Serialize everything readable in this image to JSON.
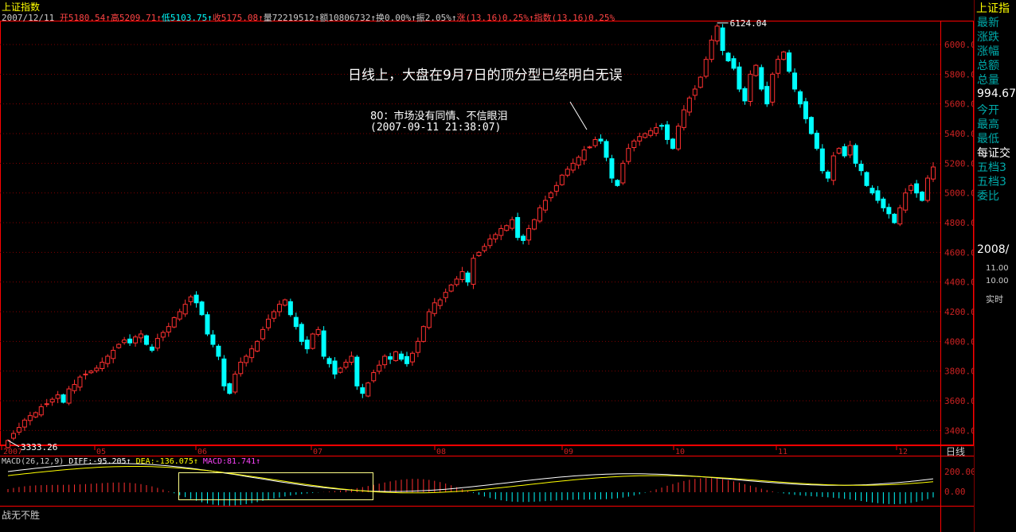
{
  "header": {
    "title": "上证指数",
    "date": "2007/12/11",
    "fields": [
      {
        "label": "开",
        "value": "5180.54",
        "color": "#ff4444"
      },
      {
        "label": "高",
        "value": "5209.71",
        "color": "#ff4444"
      },
      {
        "label": "低",
        "value": "5103.75",
        "color": "#00ffff"
      },
      {
        "label": "收",
        "value": "5175.08",
        "color": "#ff4444"
      },
      {
        "label": "量",
        "value": "72219512",
        "color": "#cccccc"
      },
      {
        "label": "额",
        "value": "10806732",
        "color": "#cccccc"
      },
      {
        "label": "换",
        "value": "0.00%",
        "color": "#cccccc"
      },
      {
        "label": "振",
        "value": "2.05%",
        "color": "#cccccc"
      },
      {
        "label": "涨",
        "value": "(13.16)0.25%",
        "color": "#ff4444"
      },
      {
        "label": "指数",
        "value": "(13.16)0.25%",
        "color": "#ff4444"
      }
    ]
  },
  "annotations": {
    "main_text": "日线上，大盘在9月7日的顶分型已经明白无误",
    "comment_line1": "80：市场没有同情、不信眼泪",
    "comment_line2": "(2007-09-11 21:38:07)",
    "high_label": "6124.04",
    "low_label": "3333.26"
  },
  "right_panel": {
    "title": "上证指",
    "items": [
      "最新",
      "涨跌",
      "涨幅",
      "总额",
      "总量",
      "994.67",
      "今开",
      "最高",
      "最低",
      "每证交",
      "五档3",
      "五档3",
      "委比",
      "2008/"
    ],
    "ticks": [
      "11.00",
      "10.00"
    ],
    "mode": "实时"
  },
  "macd": {
    "label": "MACD(26,12,9)",
    "diff_label": "DIFF:",
    "diff": "-95.205",
    "dea_label": "DEA:",
    "dea": "-136.075",
    "macd_label": "MACD:",
    "macd": "81.741"
  },
  "bottom_text": "战无不胜",
  "period_label": "日线",
  "colors": {
    "up": "#ff3030",
    "down": "#00ffff",
    "grid": "#800000",
    "axis": "#ff0000",
    "diff": "#ffffff",
    "dea": "#ffff00"
  },
  "chart_data": {
    "type": "candlestick",
    "x_ticks": [
      "2007",
      "05",
      "06",
      "07",
      "08",
      "09",
      "10",
      "11",
      "12"
    ],
    "y_ticks": [
      3400,
      3600,
      3800,
      4000,
      4200,
      4400,
      4600,
      4800,
      5000,
      5200,
      5400,
      5600,
      5800,
      6000
    ],
    "ylim": [
      3300,
      6150
    ],
    "high": 6124.04,
    "low": 3333.26,
    "closes": [
      3333,
      3380,
      3420,
      3470,
      3500,
      3520,
      3560,
      3580,
      3610,
      3640,
      3590,
      3680,
      3710,
      3760,
      3780,
      3800,
      3820,
      3860,
      3900,
      3940,
      3980,
      4010,
      3990,
      4030,
      4050,
      3980,
      3940,
      4020,
      4060,
      4100,
      4160,
      4200,
      4250,
      4300,
      4260,
      4180,
      4050,
      3980,
      3900,
      3700,
      3650,
      3780,
      3860,
      3900,
      3950,
      4000,
      4080,
      4150,
      4200,
      4250,
      4280,
      4180,
      4100,
      4000,
      3950,
      4050,
      4080,
      3900,
      3850,
      3780,
      3820,
      3860,
      3900,
      3700,
      3650,
      3720,
      3790,
      3840,
      3900,
      3880,
      3930,
      3880,
      3850,
      3920,
      4000,
      4100,
      4200,
      4260,
      4280,
      4330,
      4380,
      4420,
      4470,
      4400,
      4560,
      4600,
      4640,
      4690,
      4720,
      4760,
      4780,
      4820,
      4700,
      4680,
      4760,
      4820,
      4900,
      4950,
      5000,
      5050,
      5120,
      5160,
      5200,
      5240,
      5290,
      5310,
      5360,
      5350,
      5240,
      5100,
      5050,
      5200,
      5300,
      5350,
      5380,
      5400,
      5420,
      5440,
      5450,
      5360,
      5300,
      5450,
      5560,
      5640,
      5700,
      5780,
      5900,
      6030,
      6124,
      5960,
      5890,
      5840,
      5700,
      5620,
      5800,
      5860,
      5700,
      5600,
      5800,
      5900,
      5950,
      5820,
      5700,
      5600,
      5500,
      5400,
      5300,
      5150,
      5100,
      5250,
      5300,
      5250,
      5320,
      5200,
      5150,
      5050,
      5000,
      4950,
      4900,
      4860,
      4800,
      4900,
      5000,
      5050,
      5000,
      4950,
      5100,
      5175
    ]
  }
}
